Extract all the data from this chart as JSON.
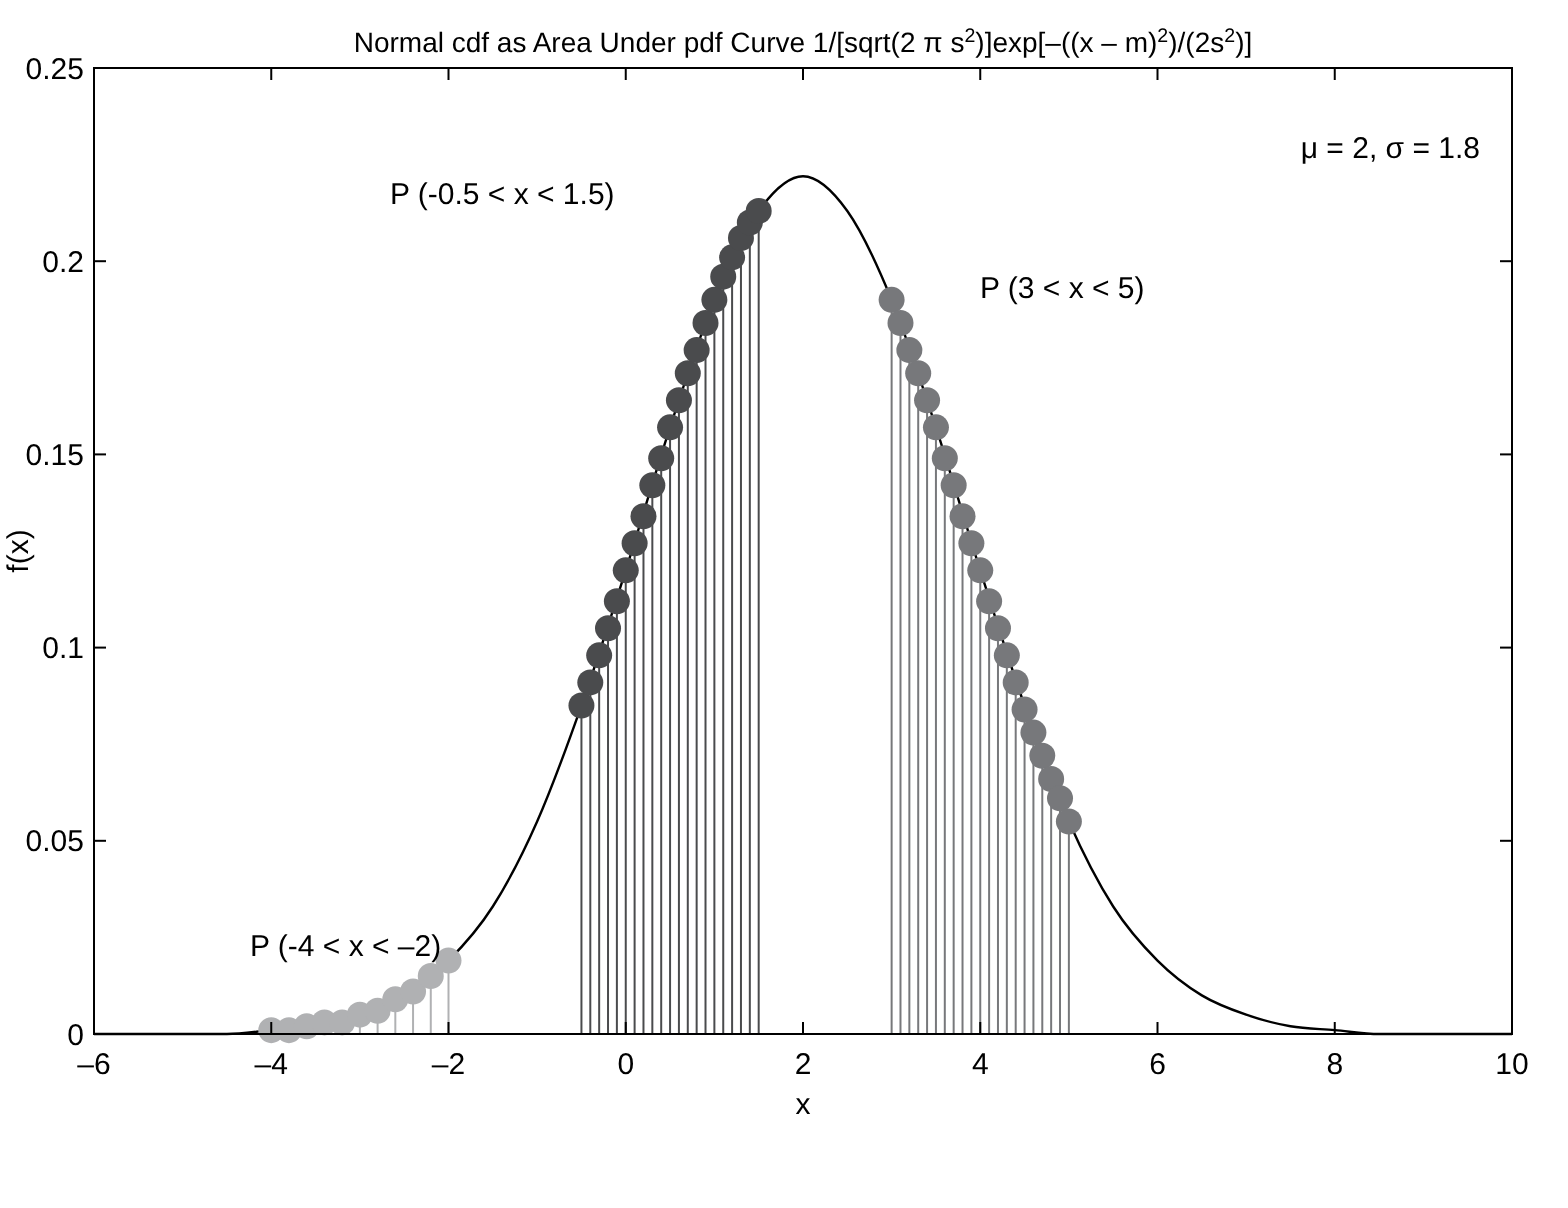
{
  "chart_data": {
    "type": "line",
    "title": "Normal cdf as Area Under pdf Curve 1/[sqrt(2 π s$^{2}$)]exp[–((x – m)$^{2}$)/(2s$^{2}$)]",
    "xlabel": "x",
    "ylabel": "f(x)",
    "xlim": [
      -6,
      10
    ],
    "xticks": [
      {
        "value": -6,
        "label": "–6"
      },
      {
        "value": -4,
        "label": "–4"
      },
      {
        "value": -2,
        "label": "–2"
      },
      0,
      2,
      4,
      6,
      8,
      10
    ],
    "ylim": [
      0,
      0.25
    ],
    "yticks": [
      0,
      0.05,
      0.1,
      0.15,
      0.2,
      0.25
    ],
    "grid": false,
    "series": [
      {
        "color": "#000000",
        "marker": "none",
        "line_style": "solid",
        "x": [
          -6,
          -5,
          -4.5,
          -4,
          -3.5,
          -3,
          -2.5,
          -2,
          -1.5,
          -1,
          -0.5,
          0,
          0.5,
          1,
          1.5,
          2,
          2.5,
          3,
          3.5,
          4,
          4.5,
          5,
          5.5,
          6,
          6.5,
          7,
          7.5,
          8,
          8.5,
          9,
          10
        ],
        "values": [
          0,
          0,
          0,
          0.001,
          0.002,
          0.005,
          0.01,
          0.019,
          0.033,
          0.055,
          0.085,
          0.12,
          0.157,
          0.19,
          0.213,
          0.222,
          0.213,
          0.19,
          0.157,
          0.12,
          0.085,
          0.055,
          0.033,
          0.019,
          0.01,
          0.005,
          0.002,
          0.001,
          0,
          0,
          0
        ]
      },
      {
        "type": "lollipop",
        "color": "#4a4b4d",
        "marker": "circle",
        "x": [
          -0.5,
          -0.4,
          -0.3,
          -0.2,
          -0.1,
          0,
          0.1,
          0.2,
          0.3,
          0.4,
          0.5,
          0.6,
          0.7,
          0.8,
          0.9,
          1,
          1.1,
          1.2,
          1.3,
          1.4,
          1.5
        ],
        "values": [
          0.085,
          0.091,
          0.098,
          0.105,
          0.112,
          0.12,
          0.127,
          0.134,
          0.142,
          0.149,
          0.157,
          0.164,
          0.171,
          0.177,
          0.184,
          0.19,
          0.196,
          0.201,
          0.206,
          0.21,
          0.213
        ]
      },
      {
        "type": "lollipop",
        "color": "#77787b",
        "marker": "circle",
        "x": [
          3,
          3.1,
          3.2,
          3.3,
          3.4,
          3.5,
          3.6,
          3.7,
          3.8,
          3.9,
          4,
          4.1,
          4.2,
          4.3,
          4.4,
          4.5,
          4.6,
          4.7,
          4.8,
          4.9,
          5
        ],
        "values": [
          0.19,
          0.184,
          0.177,
          0.171,
          0.164,
          0.157,
          0.149,
          0.142,
          0.134,
          0.127,
          0.12,
          0.112,
          0.105,
          0.098,
          0.091,
          0.084,
          0.078,
          0.072,
          0.066,
          0.061,
          0.055
        ]
      },
      {
        "type": "lollipop",
        "color": "#b0b1b3",
        "marker": "circle",
        "x": [
          -4,
          -3.8,
          -3.6,
          -3.4,
          -3.2,
          -3,
          -2.8,
          -2.6,
          -2.4,
          -2.2,
          -2
        ],
        "values": [
          0.001,
          0.001,
          0.002,
          0.003,
          0.003,
          0.005,
          0.006,
          0.009,
          0.011,
          0.015,
          0.019
        ]
      }
    ],
    "annotations": [
      "P (-0.5 < x < 1.5)",
      "P (3 < x < 5)",
      "P (-4 < x < –2)",
      "μ = 2, σ = 1.8"
    ]
  }
}
